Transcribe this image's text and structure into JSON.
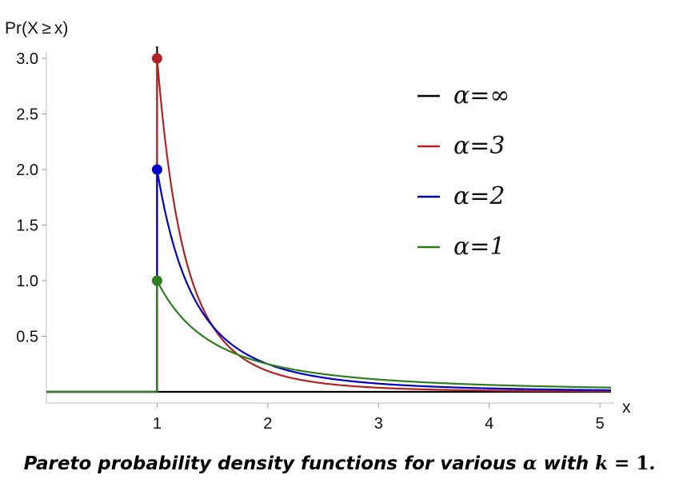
{
  "chart_data": {
    "type": "line",
    "ylabel": "Pr(X ≥ x)",
    "xlabel": "x",
    "xlim": [
      0,
      5.1
    ],
    "ylim": [
      0,
      3.0
    ],
    "x_ticks": [
      1,
      2,
      3,
      4,
      5
    ],
    "x_tick_labels": [
      "1",
      "2",
      "3",
      "4",
      "5"
    ],
    "y_ticks": [
      0.5,
      1.0,
      1.5,
      2.0,
      2.5,
      3.0
    ],
    "y_tick_labels": [
      "0.5",
      "1.0",
      "1.5",
      "2.0",
      "2.5",
      "3.0"
    ],
    "grid": false,
    "legend_position": "top-right",
    "k": 1,
    "series": [
      {
        "name": "α=∞",
        "alpha": "inf",
        "color": "#000000",
        "description_points": [
          [
            0,
            0
          ],
          [
            1,
            0
          ],
          [
            1,
            3.0
          ],
          [
            5.1,
            0
          ]
        ]
      },
      {
        "name": "α=3",
        "alpha": 3,
        "color": "#b22222",
        "points": [
          [
            0,
            0
          ],
          [
            1,
            0
          ],
          [
            1,
            3.0
          ],
          [
            1.25,
            1.23
          ],
          [
            1.5,
            0.59
          ],
          [
            2,
            0.19
          ],
          [
            2.5,
            0.077
          ],
          [
            3,
            0.037
          ],
          [
            4,
            0.012
          ],
          [
            5,
            0.005
          ]
        ]
      },
      {
        "name": "α=2",
        "alpha": 2,
        "color": "#0000cc",
        "points": [
          [
            0,
            0
          ],
          [
            1,
            0
          ],
          [
            1,
            2.0
          ],
          [
            1.25,
            1.02
          ],
          [
            1.5,
            0.59
          ],
          [
            2,
            0.25
          ],
          [
            2.5,
            0.128
          ],
          [
            3,
            0.074
          ],
          [
            4,
            0.031
          ],
          [
            5,
            0.016
          ]
        ]
      },
      {
        "name": "α=1",
        "alpha": 1,
        "color": "#2e7d1e",
        "points": [
          [
            0,
            0
          ],
          [
            1,
            0
          ],
          [
            1,
            1.0
          ],
          [
            1.25,
            0.64
          ],
          [
            1.5,
            0.44
          ],
          [
            2,
            0.25
          ],
          [
            2.5,
            0.16
          ],
          [
            3,
            0.111
          ],
          [
            4,
            0.0625
          ],
          [
            5,
            0.04
          ]
        ]
      }
    ],
    "markers": [
      {
        "x": 1,
        "y": 3.0,
        "color": "#b22222"
      },
      {
        "x": 1,
        "y": 2.0,
        "color": "#0000cc"
      },
      {
        "x": 1,
        "y": 1.0,
        "color": "#2e7d1e"
      }
    ]
  },
  "caption": {
    "text_before": "Pareto probability density functions for various ",
    "alpha_symbol": "α",
    "text_middle": " with ",
    "k_symbol": "k",
    "equals": " = ",
    "k_value": "1",
    "period": "."
  }
}
